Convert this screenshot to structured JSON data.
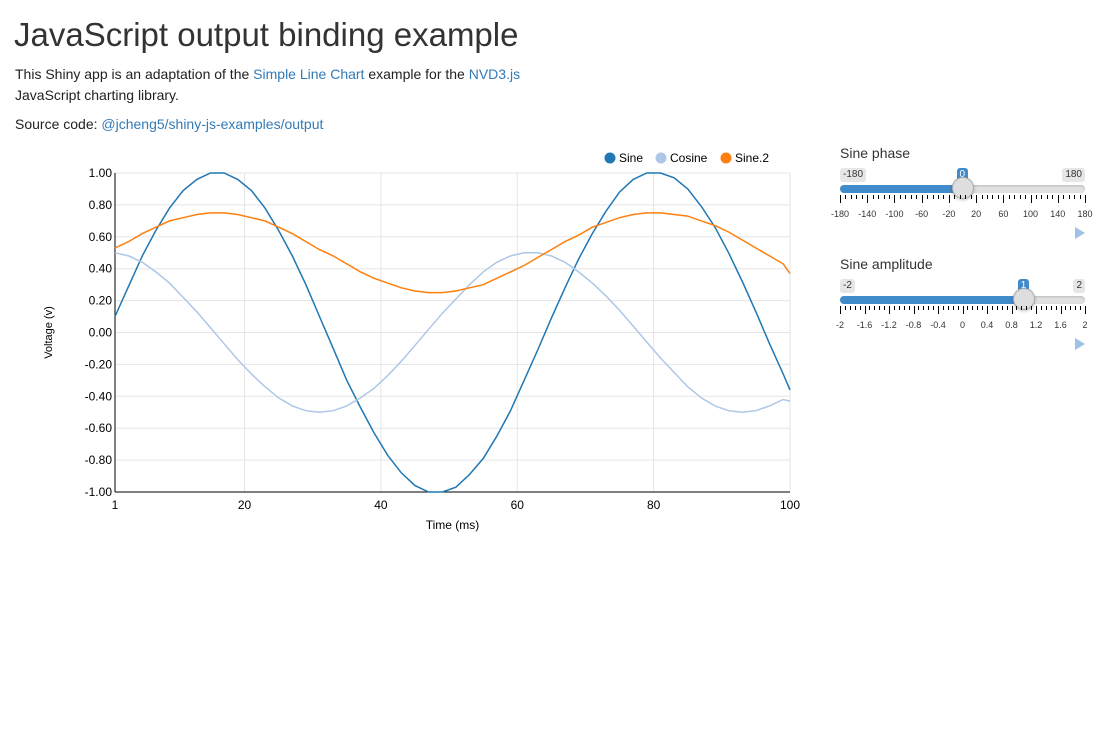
{
  "page": {
    "title": "JavaScript output binding example",
    "intro": {
      "prefix": "This Shiny app is an adaptation of the ",
      "link1": "Simple Line Chart",
      "middle": " example for the ",
      "link2": "NVD3.js",
      "suffix": " JavaScript charting library."
    },
    "source": {
      "label": "Source code: ",
      "link": "@jcheng5/shiny-js-examples/output"
    }
  },
  "controls": {
    "phase": {
      "label": "Sine phase",
      "min": -180,
      "max": 180,
      "value": 0,
      "min_text": "-180",
      "max_text": "180",
      "value_text": "0",
      "grid_labels": [
        "-180",
        "-140",
        "-100",
        "-60",
        "-20",
        "20",
        "60",
        "100",
        "140",
        "180"
      ],
      "grid_values": [
        -180,
        -140,
        -100,
        -60,
        -20,
        20,
        60,
        100,
        140,
        180
      ]
    },
    "amplitude": {
      "label": "Sine amplitude",
      "min": -2,
      "max": 2,
      "value": 1,
      "min_text": "-2",
      "max_text": "2",
      "value_text": "1",
      "grid_labels": [
        "-2",
        "-1.6",
        "-1.2",
        "-0.8",
        "-0.4",
        "0",
        "0.4",
        "0.8",
        "1.2",
        "1.6",
        "2"
      ],
      "grid_values": [
        -2,
        -1.6,
        -1.2,
        -0.8,
        -0.4,
        0,
        0.4,
        0.8,
        1.2,
        1.6,
        2
      ]
    }
  },
  "chart_data": {
    "type": "line",
    "xlabel": "Time (ms)",
    "ylabel": "Voltage (v)",
    "xlim": [
      1,
      100
    ],
    "ylim": [
      -1,
      1
    ],
    "x_ticks": [
      "1",
      "20",
      "40",
      "60",
      "80",
      "100"
    ],
    "x_tick_values": [
      1,
      20,
      40,
      60,
      80,
      100
    ],
    "y_ticks": [
      "-1.00",
      "-0.80",
      "-0.60",
      "-0.40",
      "-0.20",
      "0.00",
      "0.20",
      "0.40",
      "0.60",
      "0.80",
      "1.00"
    ],
    "y_tick_values": [
      -1,
      -0.8,
      -0.6,
      -0.4,
      -0.2,
      0,
      0.2,
      0.4,
      0.6,
      0.8,
      1
    ],
    "grid": true,
    "legend_position": "top-right",
    "x": [
      1,
      3,
      5,
      7,
      9,
      11,
      13,
      15,
      17,
      19,
      21,
      23,
      25,
      27,
      29,
      31,
      33,
      35,
      37,
      39,
      41,
      43,
      45,
      47,
      49,
      51,
      53,
      55,
      57,
      59,
      61,
      63,
      65,
      67,
      69,
      71,
      73,
      75,
      77,
      79,
      81,
      83,
      85,
      87,
      89,
      91,
      93,
      95,
      97,
      99,
      100
    ],
    "series": [
      {
        "name": "Sine",
        "color": "#1f77b4",
        "values": [
          0.1,
          0.29,
          0.48,
          0.64,
          0.78,
          0.89,
          0.96,
          1.0,
          1.0,
          0.96,
          0.89,
          0.78,
          0.64,
          0.48,
          0.3,
          0.1,
          -0.1,
          -0.3,
          -0.47,
          -0.63,
          -0.77,
          -0.88,
          -0.96,
          -1.0,
          -1.0,
          -0.97,
          -0.89,
          -0.79,
          -0.65,
          -0.49,
          -0.3,
          -0.11,
          0.09,
          0.28,
          0.46,
          0.62,
          0.76,
          0.88,
          0.96,
          1.0,
          1.0,
          0.97,
          0.9,
          0.79,
          0.66,
          0.5,
          0.32,
          0.13,
          -0.07,
          -0.26,
          -0.36
        ]
      },
      {
        "name": "Cosine",
        "color": "#aec7e8",
        "values": [
          0.5,
          0.48,
          0.44,
          0.38,
          0.31,
          0.22,
          0.13,
          0.03,
          -0.07,
          -0.17,
          -0.26,
          -0.34,
          -0.41,
          -0.46,
          -0.49,
          -0.5,
          -0.49,
          -0.46,
          -0.41,
          -0.35,
          -0.27,
          -0.18,
          -0.08,
          0.02,
          0.12,
          0.21,
          0.3,
          0.38,
          0.44,
          0.48,
          0.5,
          0.5,
          0.48,
          0.44,
          0.38,
          0.31,
          0.23,
          0.14,
          0.04,
          -0.06,
          -0.16,
          -0.25,
          -0.34,
          -0.41,
          -0.46,
          -0.49,
          -0.5,
          -0.49,
          -0.46,
          -0.42,
          -0.43
        ]
      },
      {
        "name": "Sine.2",
        "color": "#ff7f0e",
        "values": [
          0.53,
          0.57,
          0.62,
          0.66,
          0.7,
          0.72,
          0.74,
          0.75,
          0.75,
          0.74,
          0.72,
          0.7,
          0.66,
          0.62,
          0.57,
          0.52,
          0.48,
          0.43,
          0.38,
          0.34,
          0.31,
          0.28,
          0.26,
          0.25,
          0.25,
          0.26,
          0.28,
          0.3,
          0.34,
          0.38,
          0.42,
          0.47,
          0.52,
          0.57,
          0.61,
          0.66,
          0.69,
          0.72,
          0.74,
          0.75,
          0.75,
          0.74,
          0.73,
          0.7,
          0.67,
          0.63,
          0.58,
          0.53,
          0.48,
          0.43,
          0.37
        ]
      }
    ]
  }
}
